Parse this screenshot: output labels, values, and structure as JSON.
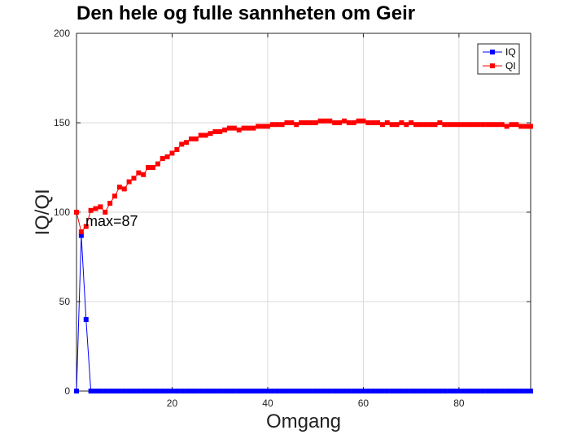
{
  "chart_data": {
    "type": "line",
    "title": "Den hele og fulle sannheten om Geir",
    "xlabel": "Omgang",
    "ylabel": "IQ/QI",
    "xlim": [
      0,
      95
    ],
    "ylim": [
      0,
      200
    ],
    "xticks": [
      20,
      40,
      60,
      80
    ],
    "yticks": [
      0,
      50,
      100,
      150,
      200
    ],
    "grid": true,
    "legend_position": "top-right",
    "annotation": {
      "text": "max=87",
      "x": 2,
      "y": 87
    },
    "series": [
      {
        "name": "IQ",
        "color": "#0000ff",
        "marker": "square",
        "x": [
          0,
          1,
          2,
          3,
          4,
          5,
          6,
          7,
          8,
          9,
          10,
          11,
          12,
          13,
          14,
          15,
          16,
          17,
          18,
          19,
          20,
          21,
          22,
          23,
          24,
          25,
          26,
          27,
          28,
          29,
          30,
          31,
          32,
          33,
          34,
          35,
          36,
          37,
          38,
          39,
          40,
          41,
          42,
          43,
          44,
          45,
          46,
          47,
          48,
          49,
          50,
          51,
          52,
          53,
          54,
          55,
          56,
          57,
          58,
          59,
          60,
          61,
          62,
          63,
          64,
          65,
          66,
          67,
          68,
          69,
          70,
          71,
          72,
          73,
          74,
          75,
          76,
          77,
          78,
          79,
          80,
          81,
          82,
          83,
          84,
          85,
          86,
          87,
          88,
          89,
          90,
          91,
          92,
          93,
          94,
          95
        ],
        "y": [
          0,
          87,
          40,
          0,
          0,
          0,
          0,
          0,
          0,
          0,
          0,
          0,
          0,
          0,
          0,
          0,
          0,
          0,
          0,
          0,
          0,
          0,
          0,
          0,
          0,
          0,
          0,
          0,
          0,
          0,
          0,
          0,
          0,
          0,
          0,
          0,
          0,
          0,
          0,
          0,
          0,
          0,
          0,
          0,
          0,
          0,
          0,
          0,
          0,
          0,
          0,
          0,
          0,
          0,
          0,
          0,
          0,
          0,
          0,
          0,
          0,
          0,
          0,
          0,
          0,
          0,
          0,
          0,
          0,
          0,
          0,
          0,
          0,
          0,
          0,
          0,
          0,
          0,
          0,
          0,
          0,
          0,
          0,
          0,
          0,
          0,
          0,
          0,
          0,
          0,
          0,
          0,
          0,
          0,
          0,
          0
        ]
      },
      {
        "name": "QI",
        "color": "#ff0000",
        "marker": "square",
        "x": [
          0,
          1,
          2,
          3,
          4,
          5,
          6,
          7,
          8,
          9,
          10,
          11,
          12,
          13,
          14,
          15,
          16,
          17,
          18,
          19,
          20,
          21,
          22,
          23,
          24,
          25,
          26,
          27,
          28,
          29,
          30,
          31,
          32,
          33,
          34,
          35,
          36,
          37,
          38,
          39,
          40,
          41,
          42,
          43,
          44,
          45,
          46,
          47,
          48,
          49,
          50,
          51,
          52,
          53,
          54,
          55,
          56,
          57,
          58,
          59,
          60,
          61,
          62,
          63,
          64,
          65,
          66,
          67,
          68,
          69,
          70,
          71,
          72,
          73,
          74,
          75,
          76,
          77,
          78,
          79,
          80,
          81,
          82,
          83,
          84,
          85,
          86,
          87,
          88,
          89,
          90,
          91,
          92,
          93,
          94,
          95
        ],
        "y": [
          100,
          89,
          92,
          101,
          102,
          103,
          100,
          105,
          109,
          114,
          113,
          117,
          119,
          122,
          121,
          125,
          125,
          127,
          130,
          131,
          133,
          135,
          138,
          139,
          141,
          141,
          143,
          143,
          144,
          145,
          145,
          146,
          147,
          147,
          146,
          147,
          147,
          147,
          148,
          148,
          148,
          149,
          149,
          149,
          150,
          150,
          149,
          150,
          150,
          150,
          150,
          151,
          151,
          151,
          150,
          150,
          151,
          150,
          150,
          151,
          151,
          150,
          150,
          150,
          149,
          150,
          149,
          149,
          150,
          149,
          150,
          149,
          149,
          149,
          149,
          149,
          150,
          149,
          149,
          149,
          149,
          149,
          149,
          149,
          149,
          149,
          149,
          149,
          149,
          149,
          148,
          149,
          149,
          148,
          148,
          148
        ]
      }
    ]
  }
}
